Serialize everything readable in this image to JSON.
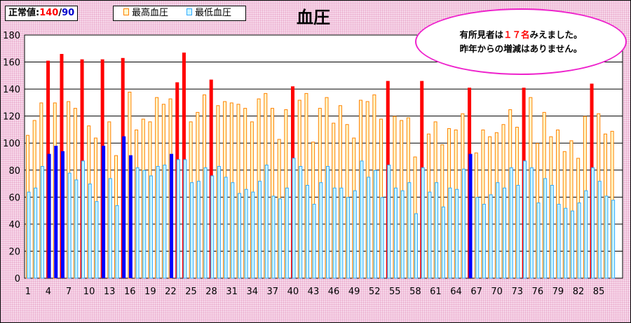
{
  "reference_badge": {
    "label": "正常値:",
    "systolic": "140",
    "separator": "/",
    "diastolic": "90"
  },
  "legend": {
    "high_label": "最高血圧",
    "low_label": "最低血圧"
  },
  "title": "血圧",
  "callout": {
    "prefix": "有所見者は",
    "count": "１７名",
    "suffix": "みえました。",
    "line2": "昨年からの増減はありません。"
  },
  "colors": {
    "high_normal": "#fffbcc",
    "high_normal_border": "#ff8000",
    "high_abnormal": "#ff0000",
    "low_normal": "#ccf6ff",
    "low_normal_border": "#33aaff",
    "low_abnormal": "#0000ff"
  },
  "chart_data": {
    "type": "bar",
    "title": "血圧",
    "categories": [
      1,
      2,
      3,
      4,
      5,
      6,
      7,
      8,
      9,
      10,
      11,
      12,
      13,
      14,
      15,
      16,
      17,
      18,
      19,
      20,
      21,
      22,
      23,
      24,
      25,
      26,
      27,
      28,
      29,
      30,
      31,
      32,
      33,
      34,
      35,
      36,
      37,
      38,
      39,
      40,
      41,
      42,
      43,
      44,
      45,
      46,
      47,
      48,
      49,
      50,
      51,
      52,
      53,
      54,
      55,
      56,
      57,
      58,
      59,
      60,
      61,
      62,
      63,
      64,
      65,
      66,
      67,
      68,
      69,
      70,
      71,
      72,
      73,
      74,
      75,
      76,
      77,
      78,
      79,
      80,
      81,
      82,
      83,
      84,
      85,
      86,
      87,
      88
    ],
    "x_tick_labels": [
      "1",
      "4",
      "7",
      "10",
      "13",
      "16",
      "19",
      "22",
      "25",
      "28",
      "31",
      "34",
      "37",
      "40",
      "43",
      "46",
      "49",
      "52",
      "55",
      "58",
      "61",
      "64",
      "67",
      "70",
      "73",
      "76",
      "79",
      "82",
      "85"
    ],
    "ylim": [
      0,
      180
    ],
    "y_ticks": [
      0,
      20,
      40,
      60,
      80,
      100,
      120,
      140,
      160,
      180
    ],
    "grid": true,
    "reference_values": {
      "systolic": 140,
      "diastolic": 90
    },
    "series": [
      {
        "name": "最高血圧",
        "values": [
          106,
          117,
          130,
          161,
          130,
          166,
          131,
          126,
          162,
          113,
          104,
          162,
          116,
          91,
          163,
          138,
          110,
          118,
          116,
          134,
          129,
          133,
          145,
          167,
          116,
          123,
          136,
          147,
          128,
          131,
          130,
          129,
          126,
          116,
          133,
          137,
          126,
          103,
          125,
          142,
          132,
          137,
          101,
          126,
          134,
          115,
          128,
          114,
          104,
          132,
          131,
          136,
          118,
          146,
          120,
          117,
          119,
          90,
          146,
          107,
          116,
          99,
          111,
          110,
          122,
          141,
          93,
          110,
          105,
          108,
          114,
          125,
          112,
          141,
          134,
          100,
          123,
          105,
          110,
          94,
          102,
          89,
          120,
          144,
          122,
          107,
          109,
          0
        ]
      },
      {
        "name": "最低血圧",
        "values": [
          64,
          67,
          83,
          92,
          98,
          94,
          78,
          73,
          87,
          70,
          57,
          98,
          74,
          54,
          105,
          91,
          82,
          80,
          76,
          83,
          84,
          92,
          88,
          88,
          71,
          72,
          82,
          76,
          83,
          75,
          71,
          63,
          66,
          64,
          72,
          84,
          61,
          59,
          67,
          89,
          83,
          69,
          55,
          71,
          83,
          67,
          67,
          60,
          65,
          87,
          75,
          80,
          60,
          84,
          67,
          65,
          71,
          48,
          82,
          64,
          71,
          53,
          67,
          66,
          81,
          92,
          60,
          55,
          62,
          71,
          67,
          82,
          69,
          87,
          82,
          56,
          74,
          69,
          55,
          52,
          50,
          56,
          65,
          82,
          72,
          61,
          58,
          0
        ]
      }
    ]
  }
}
